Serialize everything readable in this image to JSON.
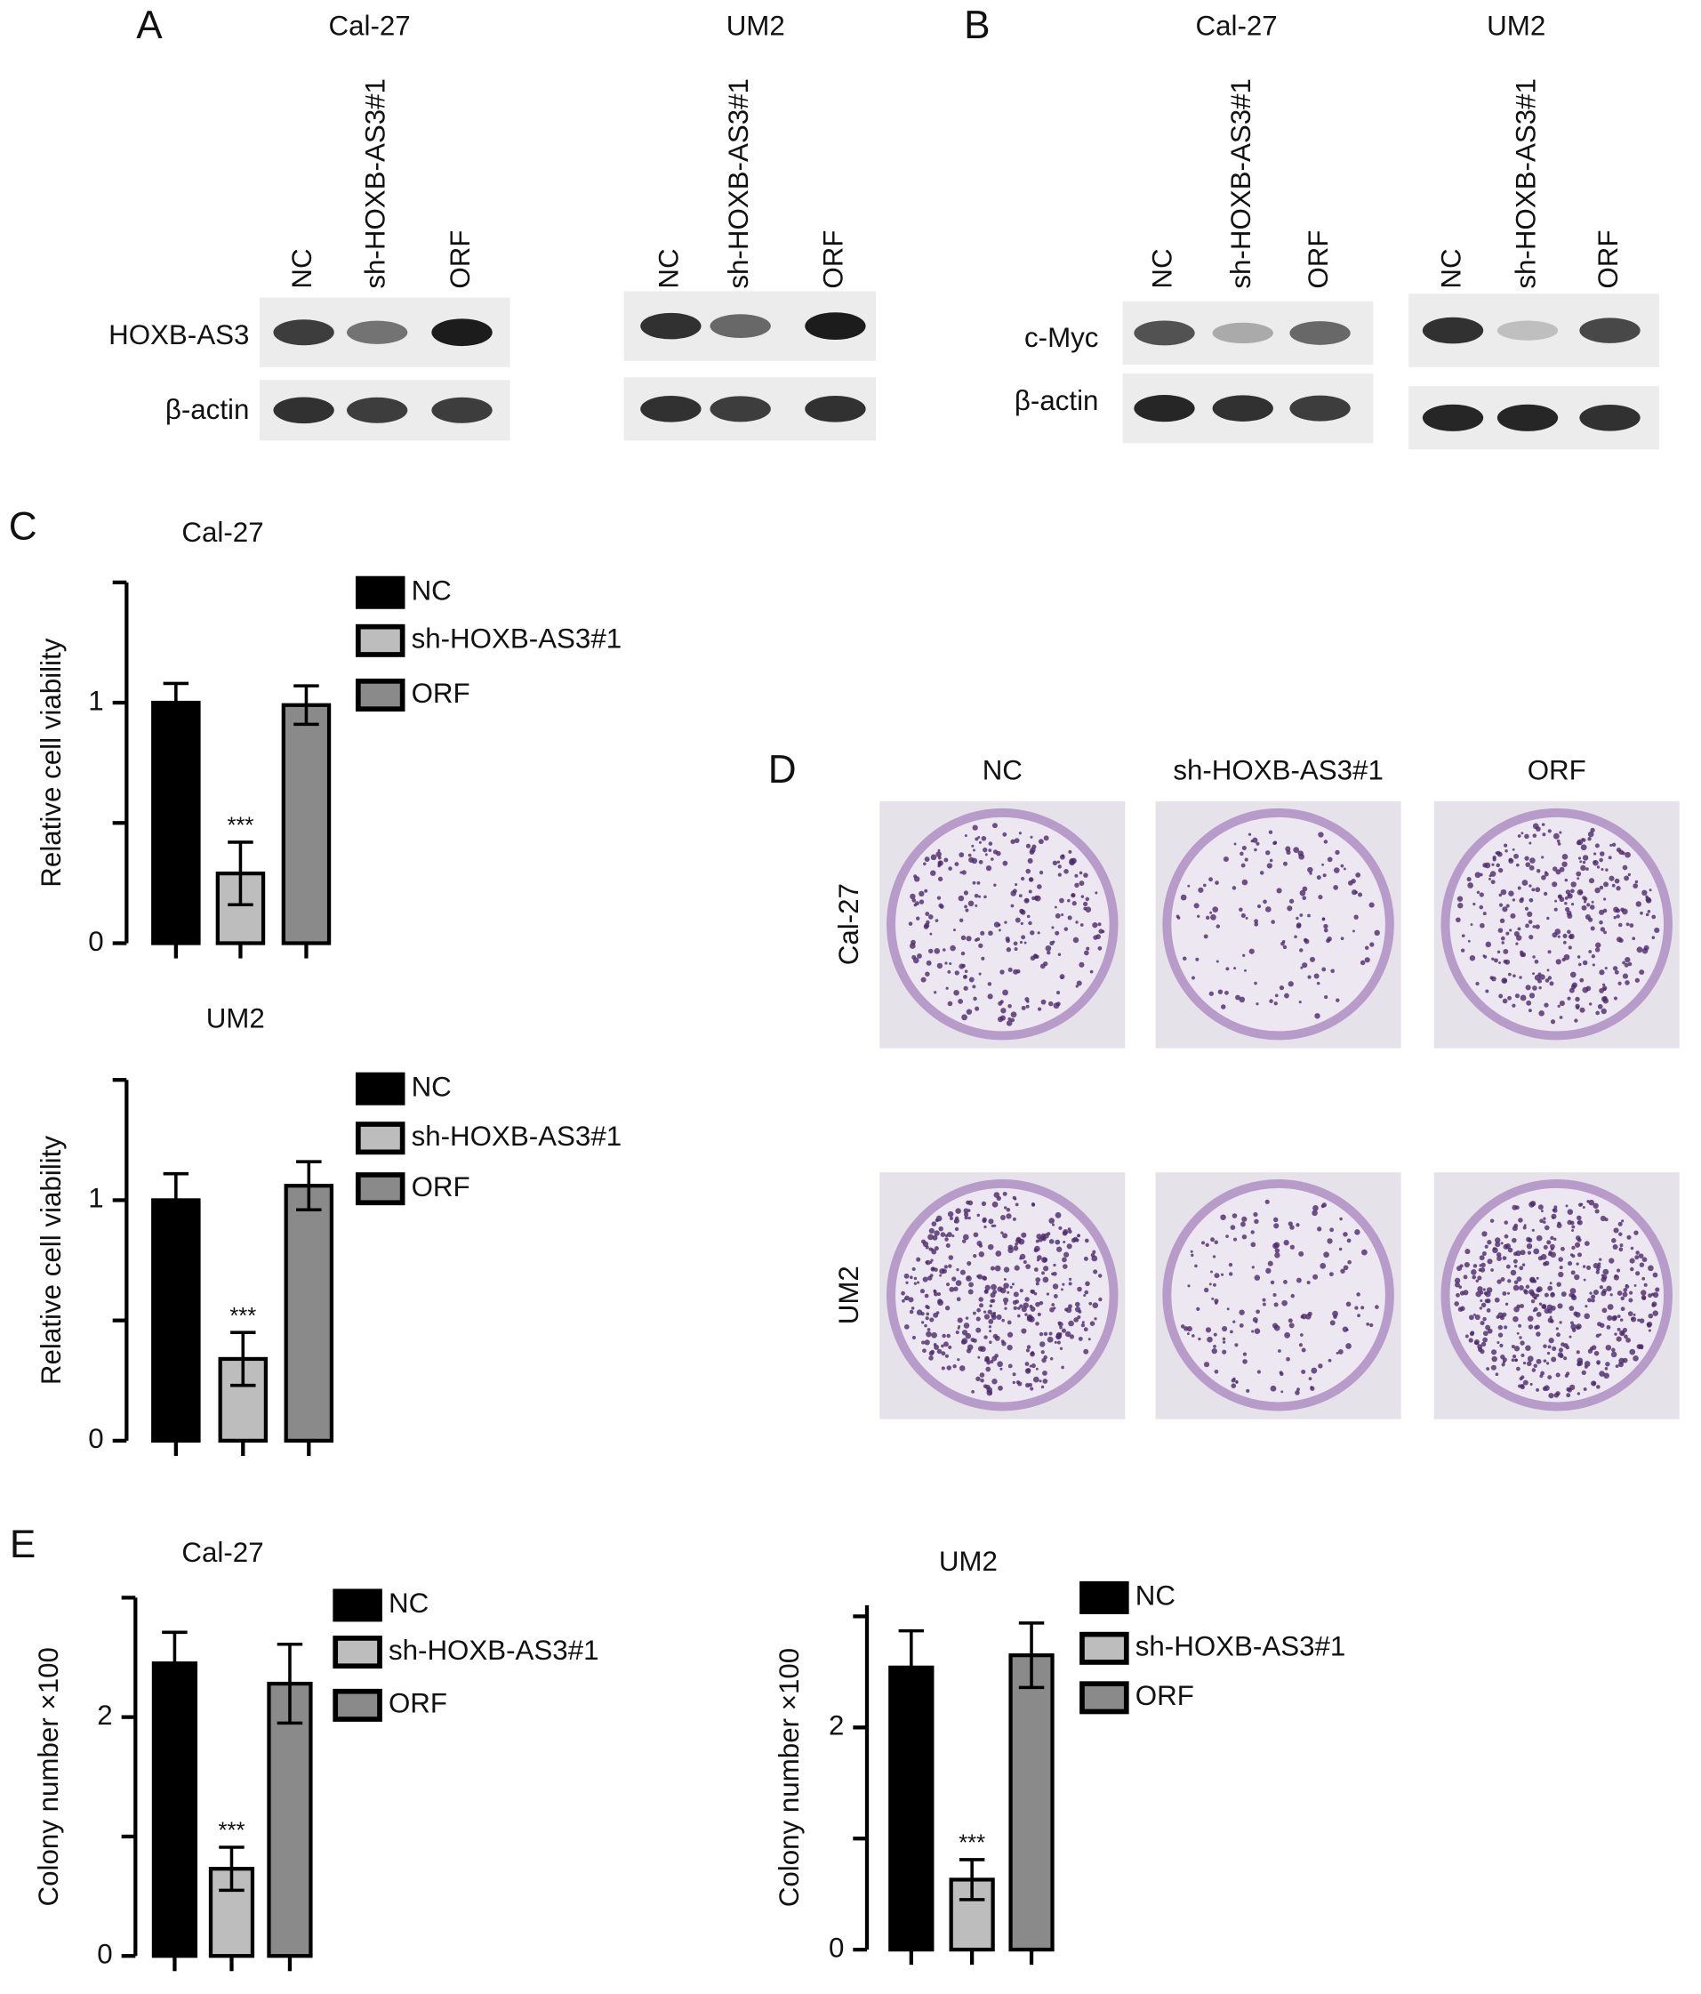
{
  "figure": {
    "panel_labels": [
      "A",
      "B",
      "C",
      "D",
      "E"
    ],
    "blot_A": {
      "cell_lines": [
        "Cal-27",
        "UM2"
      ],
      "lanes": [
        "NC",
        "sh-HOXB-AS3#1",
        "ORF"
      ],
      "rows": [
        "HOXB-AS3",
        "β-actin"
      ]
    },
    "blot_B": {
      "cell_lines": [
        "Cal-27",
        "UM2"
      ],
      "lanes": [
        "NC",
        "sh-HOXB-AS3#1",
        "ORF"
      ],
      "rows": [
        "c-Myc",
        "β-actin"
      ]
    },
    "colony_D": {
      "columns": [
        "NC",
        "sh-HOXB-AS3#1",
        "ORF"
      ],
      "rows": [
        "Cal-27",
        "UM2"
      ]
    }
  },
  "chart_data": [
    {
      "type": "bar",
      "title": "Cal-27",
      "y_label": "Relative cell viability",
      "ylim": [
        0,
        1.5
      ],
      "yticks": [
        0,
        1
      ],
      "minor_yticks": [
        0.5,
        1.5
      ],
      "series": [
        {
          "name": "NC",
          "color": "#000000",
          "values": [
            1.0
          ],
          "errors": [
            0.08
          ]
        },
        {
          "name": "sh-HOXB-AS3#1",
          "color": "#bdbdbd",
          "values": [
            0.29
          ],
          "errors": [
            0.13
          ],
          "significance": "***"
        },
        {
          "name": "ORF",
          "color": "#8a8a8a",
          "values": [
            0.99
          ],
          "errors": [
            0.08
          ]
        }
      ]
    },
    {
      "type": "bar",
      "title": "UM2",
      "y_label": "Relative cell viability",
      "ylim": [
        0,
        1.5
      ],
      "yticks": [
        0,
        1
      ],
      "minor_yticks": [
        0.5,
        1.5
      ],
      "series": [
        {
          "name": "NC",
          "color": "#000000",
          "values": [
            1.0
          ],
          "errors": [
            0.11
          ]
        },
        {
          "name": "sh-HOXB-AS3#1",
          "color": "#bdbdbd",
          "values": [
            0.34
          ],
          "errors": [
            0.11
          ],
          "significance": "***"
        },
        {
          "name": "ORF",
          "color": "#8a8a8a",
          "values": [
            1.06
          ],
          "errors": [
            0.1
          ]
        }
      ]
    },
    {
      "type": "bar",
      "title": "Cal-27",
      "y_label": "Colony number ×100",
      "ylim": [
        0,
        3
      ],
      "yticks": [
        0,
        2
      ],
      "minor_yticks": [
        1,
        3
      ],
      "series": [
        {
          "name": "NC",
          "color": "#000000",
          "values": [
            2.45
          ],
          "errors": [
            0.26
          ]
        },
        {
          "name": "sh-HOXB-AS3#1",
          "color": "#bdbdbd",
          "values": [
            0.73
          ],
          "errors": [
            0.18
          ],
          "significance": "***"
        },
        {
          "name": "ORF",
          "color": "#8a8a8a",
          "values": [
            2.28
          ],
          "errors": [
            0.33
          ]
        }
      ]
    },
    {
      "type": "bar",
      "title": "UM2",
      "y_label": "Colony number ×100",
      "ylim": [
        0,
        3.1
      ],
      "yticks": [
        0,
        2
      ],
      "minor_yticks": [
        1,
        3
      ],
      "series": [
        {
          "name": "NC",
          "color": "#000000",
          "values": [
            2.54
          ],
          "errors": [
            0.33
          ]
        },
        {
          "name": "sh-HOXB-AS3#1",
          "color": "#bdbdbd",
          "values": [
            0.63
          ],
          "errors": [
            0.18
          ],
          "significance": "***"
        },
        {
          "name": "ORF",
          "color": "#8a8a8a",
          "values": [
            2.65
          ],
          "errors": [
            0.29
          ]
        }
      ]
    }
  ]
}
